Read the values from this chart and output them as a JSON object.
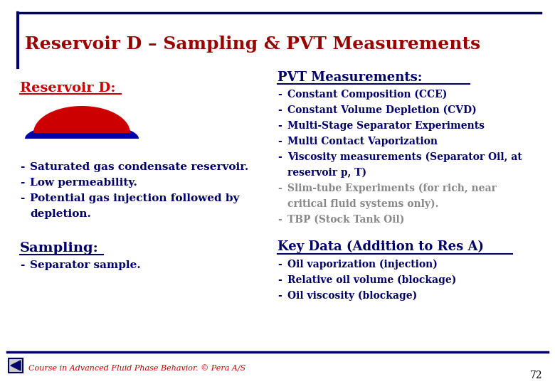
{
  "title": "Reservoir D – Sampling & PVT Measurements",
  "title_color": "#990000",
  "title_fontsize": 18,
  "background_color": "#FFFFFF",
  "border_color": "#000066",
  "reservoir_d_label": "Reservoir D:",
  "reservoir_d_color": "#CC0000",
  "left_bullets": [
    "Saturated gas condensate reservoir.",
    "Low permeability.",
    "Potential gas injection followed by",
    "   depletion."
  ],
  "sampling_label": "Sampling:",
  "sampling_color": "#000066",
  "sampling_bullets": [
    "Separator sample."
  ],
  "pvt_title": "PVT Measurements:",
  "pvt_title_color": "#000066",
  "pvt_bullets_bold": [
    "Constant Composition (CCE)",
    "Constant Volume Depletion (CVD)",
    "Multi-Stage Separator Experiments",
    "Multi Contact Vaporization",
    "Viscosity measurements (Separator Oil, at",
    "   reservoir p, T)"
  ],
  "pvt_bullets_gray": [
    "Slim-tube Experiments (for rich, near",
    "   critical fluid systems only).",
    "TBP (Stock Tank Oil)"
  ],
  "key_data_title": "Key Data (Addition to Res A)",
  "key_data_color": "#000066",
  "key_data_bullets": [
    "Oil vaporization (injection)",
    "Relative oil volume (blockage)",
    "Oil viscosity (blockage)"
  ],
  "footer_text": "Course in Advanced Fluid Phase Behavior. © Pera A/S",
  "footer_color": "#CC0000",
  "page_number": "72",
  "dome_blue_color": "#0000AA",
  "dome_red_color": "#CC0000"
}
